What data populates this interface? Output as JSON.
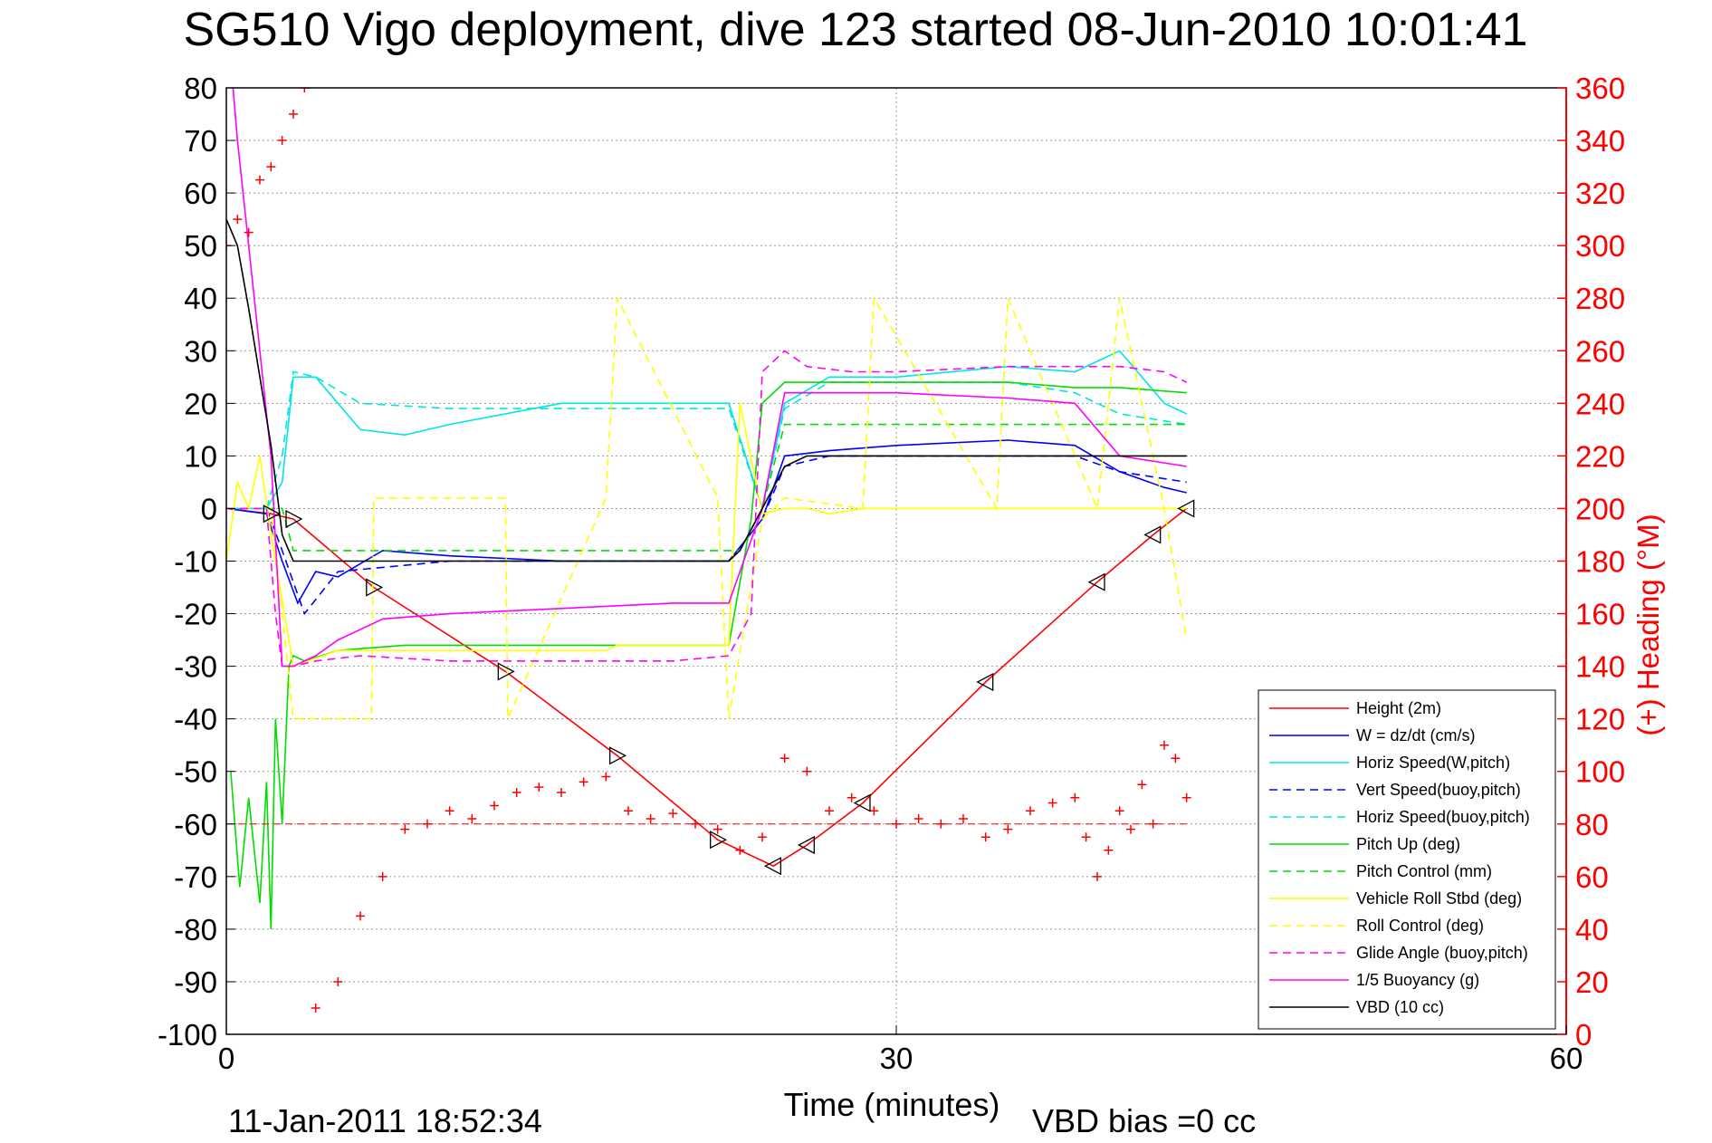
{
  "chart_data": {
    "type": "line",
    "title": "SG510 Vigo deployment, dive 123 started 08-Jun-2010 10:01:41",
    "xlabel": "Time (minutes)",
    "ylabel_right": "(+) Heading (°M)",
    "footer_left": "11-Jan-2011 18:52:34",
    "footer_right": "VBD bias =0 cc",
    "xlim": [
      0,
      60
    ],
    "ylim": [
      -100,
      80
    ],
    "ylim_right": [
      0,
      360
    ],
    "x_ticks": [
      0,
      30,
      60
    ],
    "y_ticks": [
      80,
      70,
      60,
      50,
      40,
      30,
      20,
      10,
      0,
      -10,
      -20,
      -30,
      -40,
      -50,
      -60,
      -70,
      -80,
      -90,
      -100
    ],
    "y_ticks_right": [
      360,
      340,
      320,
      300,
      280,
      260,
      240,
      220,
      200,
      180,
      160,
      140,
      120,
      100,
      80,
      60,
      40,
      20,
      0
    ],
    "grid": true,
    "legend_position": "bottom-right",
    "series": [
      {
        "name": "Height (2m)",
        "color": "#ff0000",
        "dash": "solid",
        "x": [
          0,
          2,
          3,
          6.6,
          12.5,
          17.5,
          22,
          24.5,
          26,
          28.5,
          34,
          39,
          41.5,
          43
        ],
        "y": [
          0,
          -1,
          -2,
          -15,
          -31,
          -47,
          -63,
          -68,
          -64,
          -56,
          -33,
          -14,
          -5,
          0
        ]
      },
      {
        "name": "W = dz/dt (cm/s)",
        "color": "#0000ff",
        "dash": "solid",
        "x": [
          0,
          1.8,
          2.5,
          3.2,
          4,
          5,
          7,
          10,
          15,
          20,
          22.5,
          24,
          25,
          27,
          30,
          35,
          38,
          40,
          42,
          43
        ],
        "y": [
          0,
          -1,
          -10,
          -18,
          -12,
          -13,
          -8,
          -9,
          -10,
          -10,
          -10,
          -2,
          10,
          11,
          12,
          13,
          12,
          7,
          4,
          3
        ]
      },
      {
        "name": "Horiz Speed(W,pitch)",
        "color": "#00e5e5",
        "dash": "solid",
        "x": [
          0,
          1.8,
          2.5,
          3,
          4,
          5,
          6,
          8,
          10,
          15,
          20,
          22.5,
          24,
          25,
          27,
          30,
          35,
          38,
          40,
          42,
          43
        ],
        "y": [
          0,
          0,
          5,
          25,
          25,
          20,
          15,
          14,
          16,
          20,
          20,
          20,
          0,
          20,
          25,
          25,
          27,
          26,
          30,
          20,
          18
        ]
      },
      {
        "name": "Vert Speed(buoy,pitch)",
        "color": "#0000ff",
        "dash": "dashed",
        "x": [
          0,
          1.8,
          2.5,
          3.5,
          5,
          10,
          15,
          20,
          22.5,
          24,
          25,
          27,
          30,
          35,
          38,
          40,
          43
        ],
        "y": [
          0,
          0,
          -8,
          -20,
          -12,
          -10,
          -10,
          -10,
          -10,
          -2,
          8,
          10,
          10,
          10,
          10,
          7,
          5
        ]
      },
      {
        "name": "Horiz Speed(buoy,pitch)",
        "color": "#00e5e5",
        "dash": "dashed",
        "x": [
          0,
          1.8,
          2.5,
          3,
          4,
          6,
          10,
          15,
          20,
          22.5,
          24,
          25,
          27,
          30,
          35,
          38,
          40,
          43
        ],
        "y": [
          0,
          0,
          10,
          26,
          25,
          20,
          19,
          19,
          19,
          19,
          0,
          19,
          24,
          24,
          24,
          22,
          18,
          16
        ]
      },
      {
        "name": "Pitch Up (deg)",
        "color": "#00dd00",
        "dash": "solid",
        "x": [
          0.2,
          0.6,
          1,
          1.5,
          1.8,
          2,
          2.2,
          2.5,
          2.8,
          3,
          3.5,
          5,
          8,
          15,
          17,
          22.5,
          23.5,
          24,
          25,
          27,
          30,
          35,
          38,
          40,
          43
        ],
        "y": [
          -50,
          -72,
          -55,
          -75,
          -52,
          -80,
          -40,
          -60,
          -30,
          -28,
          -29,
          -27,
          -26,
          -26,
          -26,
          -26,
          -2,
          20,
          24,
          24,
          24,
          24,
          23,
          23,
          22
        ]
      },
      {
        "name": "Pitch Control (mm)",
        "color": "#00dd00",
        "dash": "dashed",
        "x": [
          0,
          2.5,
          3,
          20,
          23,
          24,
          25,
          30,
          35,
          40,
          43
        ],
        "y": [
          0,
          0,
          -8,
          -8,
          -8,
          0,
          16,
          16,
          16,
          16,
          16
        ]
      },
      {
        "name": "Vehicle Roll Stbd (deg)",
        "color": "#ffff00",
        "dash": "solid",
        "x": [
          0,
          0.5,
          1,
          1.5,
          2,
          3,
          5,
          10,
          15,
          17,
          17.5,
          20,
          22.5,
          23,
          24,
          25,
          26,
          27,
          28.5,
          30,
          35,
          40,
          43
        ],
        "y": [
          -10,
          5,
          0,
          10,
          -5,
          -30,
          -27,
          -27,
          -27,
          -27,
          -26,
          -26,
          -26,
          20,
          -1,
          0,
          0,
          -1,
          0,
          0,
          0,
          0,
          0
        ]
      },
      {
        "name": "Roll Control (deg)",
        "color": "#ffff00",
        "dash": "dashed",
        "x": [
          0,
          2,
          3,
          6.5,
          6.6,
          12.5,
          12.6,
          17,
          17.5,
          22,
          22.5,
          24,
          25,
          28.5,
          29,
          34.5,
          35,
          39,
          40,
          42,
          43
        ],
        "y": [
          0,
          0,
          -40,
          -40,
          2,
          2,
          -40,
          2,
          40,
          2,
          -40,
          -2,
          2,
          0,
          40,
          0,
          40,
          0,
          40,
          0,
          -25
        ]
      },
      {
        "name": "Glide Angle (buoy,pitch)",
        "color": "#ff00ff",
        "dash": "dashed",
        "x": [
          0,
          1.8,
          2.2,
          2.5,
          3,
          4,
          6,
          10,
          15,
          20,
          22.5,
          23.5,
          24,
          25,
          26,
          28,
          30,
          35,
          38,
          40,
          42,
          43
        ],
        "y": [
          0,
          0,
          -20,
          -30,
          -30,
          -29,
          -28,
          -29,
          -29,
          -29,
          -28,
          -20,
          26,
          30,
          27,
          26,
          26,
          27,
          27,
          27,
          26,
          24
        ]
      },
      {
        "name": "1/5 Buoyancy (g)",
        "color": "#ff00ff",
        "dash": "solid",
        "x": [
          0,
          0.5,
          1,
          1.5,
          2,
          2.5,
          3,
          4,
          5,
          7,
          10,
          15,
          20,
          22.5,
          24,
          25,
          27,
          30,
          35,
          38,
          40,
          43
        ],
        "y": [
          95,
          70,
          50,
          30,
          10,
          -30,
          -30,
          -28,
          -25,
          -21,
          -20,
          -19,
          -18,
          -18,
          0,
          22,
          22,
          22,
          21,
          20,
          10,
          8
        ]
      },
      {
        "name": "VBD (10 cc)",
        "color": "#000000",
        "dash": "solid",
        "x": [
          0,
          0.5,
          1,
          1.5,
          2,
          2.3,
          2.5,
          3,
          5,
          10,
          15,
          20,
          22.5,
          23,
          24,
          25,
          26,
          30,
          35,
          40,
          43
        ],
        "y": [
          55,
          50,
          38,
          25,
          12,
          2,
          -5,
          -10,
          -10,
          -10,
          -10,
          -10,
          -10,
          -8,
          0,
          8,
          10,
          10,
          10,
          10,
          10
        ]
      },
      {
        "name": "Heading",
        "axis": "right",
        "color": "#ff0000",
        "marker": "+",
        "x": [
          0,
          0.5,
          1,
          1.5,
          2,
          2.5,
          3,
          3.5,
          4,
          5,
          6,
          7,
          8,
          9,
          10,
          11,
          12,
          13,
          14,
          15,
          16,
          17,
          18,
          19,
          20,
          21,
          22,
          23,
          24,
          25,
          26,
          27,
          28,
          29,
          30,
          31,
          32,
          33,
          34,
          35,
          36,
          37,
          38,
          38.5,
          39,
          39.5,
          40,
          40.5,
          41,
          41.5,
          42,
          42.5,
          43
        ],
        "y": [
          300,
          310,
          305,
          325,
          330,
          340,
          350,
          360,
          10,
          20,
          45,
          60,
          78,
          80,
          85,
          82,
          87,
          92,
          94,
          92,
          96,
          98,
          85,
          82,
          84,
          80,
          78,
          70,
          75,
          105,
          100,
          85,
          90,
          85,
          80,
          82,
          80,
          82,
          75,
          78,
          85,
          88,
          90,
          75,
          60,
          70,
          85,
          78,
          95,
          80,
          110,
          105,
          90
        ]
      }
    ]
  }
}
